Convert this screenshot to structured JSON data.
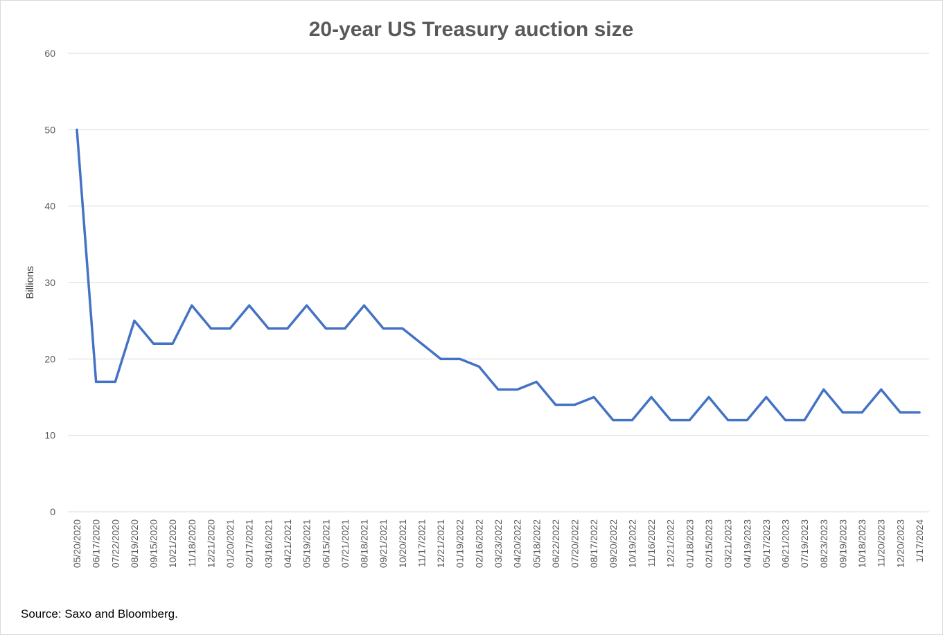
{
  "chart_data": {
    "type": "line",
    "title": "20-year US Treasury auction size",
    "xlabel": "",
    "ylabel": "Billions",
    "ylim": [
      0,
      60
    ],
    "yticks": [
      0,
      10,
      20,
      30,
      40,
      50,
      60
    ],
    "grid": true,
    "line_color": "#4472C4",
    "categories": [
      "05/20/2020",
      "06/17/2020",
      "07/22/2020",
      "08/19/2020",
      "09/15/2020",
      "10/21/2020",
      "11/18/2020",
      "12/21/2020",
      "01/20/2021",
      "02/17/2021",
      "03/16/2021",
      "04/21/2021",
      "05/19/2021",
      "06/15/2021",
      "07/21/2021",
      "08/18/2021",
      "09/21/2021",
      "10/20/2021",
      "11/17/2021",
      "12/21/2021",
      "01/19/2022",
      "02/16/2022",
      "03/23/2022",
      "04/20/2022",
      "05/18/2022",
      "06/22/2022",
      "07/20/2022",
      "08/17/2022",
      "09/20/2022",
      "10/19/2022",
      "11/16/2022",
      "12/21/2022",
      "01/18/2023",
      "02/15/2023",
      "03/21/2023",
      "04/19/2023",
      "05/17/2023",
      "06/21/2023",
      "07/19/2023",
      "08/23/2023",
      "09/19/2023",
      "10/18/2023",
      "11/20/2023",
      "12/20/2023",
      "1/17/2024"
    ],
    "values": [
      50,
      17,
      17,
      25,
      22,
      22,
      27,
      24,
      24,
      27,
      24,
      24,
      27,
      24,
      24,
      27,
      24,
      24,
      22,
      20,
      20,
      19,
      16,
      16,
      17,
      14,
      14,
      15,
      12,
      12,
      15,
      12,
      12,
      15,
      12,
      12,
      15,
      12,
      12,
      16,
      13,
      13,
      16,
      13,
      13
    ],
    "source": "Source: Saxo and Bloomberg."
  }
}
